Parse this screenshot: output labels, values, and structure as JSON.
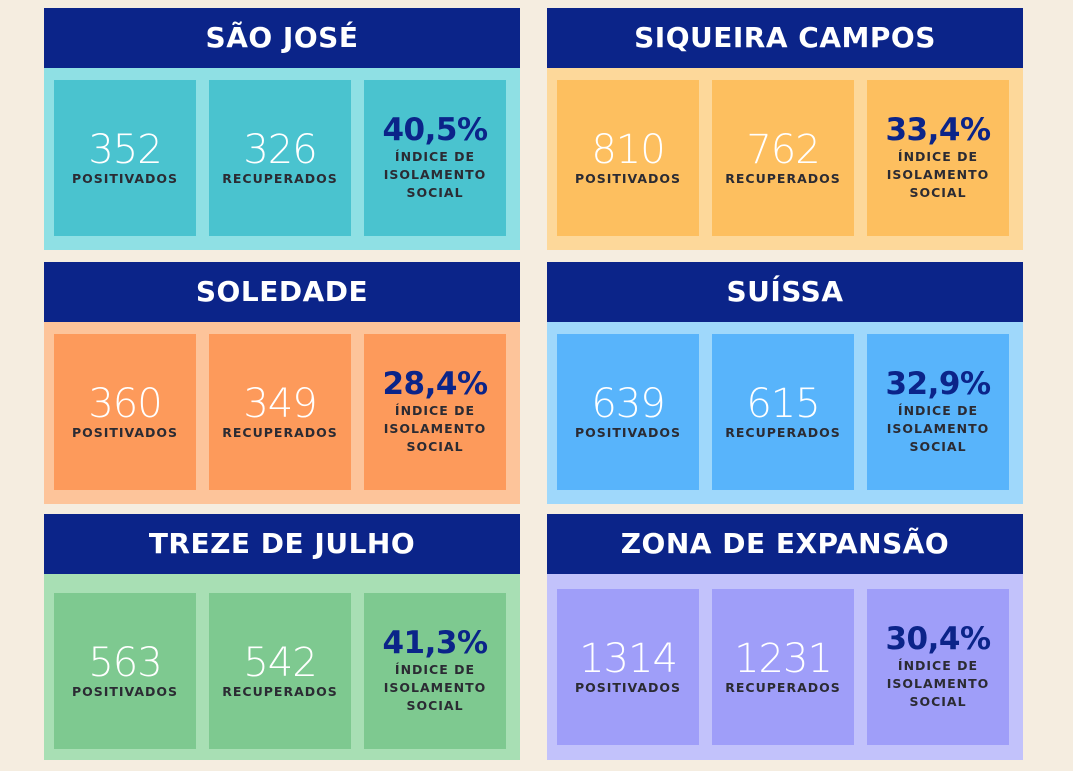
{
  "colors": {
    "background": "#f5ede0",
    "header": "#0b2489",
    "percent_text": "#0b2489",
    "label_text": "#2b2b33"
  },
  "panels": [
    {
      "name": "SÃO JOSÉ",
      "positivos": "352",
      "positivos_label": "POSITIVADOS",
      "recuperados": "326",
      "recuperados_label": "RECUPERADOS",
      "isolamento": "40,5%",
      "isolamento_label_1": "ÍNDICE DE",
      "isolamento_label_2": "ISOLAMENTO",
      "isolamento_label_3": "SOCIAL",
      "panel_color": "#8fe0e4",
      "box_color": "#4ac3cf"
    },
    {
      "name": "SIQUEIRA CAMPOS",
      "positivos": "810",
      "positivos_label": "POSITIVADOS",
      "recuperados": "762",
      "recuperados_label": "RECUPERADOS",
      "isolamento": "33,4%",
      "isolamento_label_1": "ÍNDICE DE",
      "isolamento_label_2": "ISOLAMENTO",
      "isolamento_label_3": "SOCIAL",
      "panel_color": "#fdd89a",
      "box_color": "#fdbf5f"
    },
    {
      "name": "SOLEDADE",
      "positivos": "360",
      "positivos_label": "POSITIVADOS",
      "recuperados": "349",
      "recuperados_label": "RECUPERADOS",
      "isolamento": "28,4%",
      "isolamento_label_1": "ÍNDICE DE",
      "isolamento_label_2": "ISOLAMENTO",
      "isolamento_label_3": "SOCIAL",
      "panel_color": "#fdc49a",
      "box_color": "#fd9a5b"
    },
    {
      "name": "SUÍSSA",
      "positivos": "639",
      "positivos_label": "POSITIVADOS",
      "recuperados": "615",
      "recuperados_label": "RECUPERADOS",
      "isolamento": "32,9%",
      "isolamento_label_1": "ÍNDICE DE",
      "isolamento_label_2": "ISOLAMENTO",
      "isolamento_label_3": "SOCIAL",
      "panel_color": "#9fd8fb",
      "box_color": "#58b4fb"
    },
    {
      "name": "TREZE DE JULHO",
      "positivos": "563",
      "positivos_label": "POSITIVADOS",
      "recuperados": "542",
      "recuperados_label": "RECUPERADOS",
      "isolamento": "41,3%",
      "isolamento_label_1": "ÍNDICE DE",
      "isolamento_label_2": "ISOLAMENTO",
      "isolamento_label_3": "SOCIAL",
      "panel_color": "#a8dfb4",
      "box_color": "#7ec990"
    },
    {
      "name": "ZONA DE EXPANSÃO",
      "positivos": "1314",
      "positivos_label": "POSITIVADOS",
      "recuperados": "1231",
      "recuperados_label": "RECUPERADOS",
      "isolamento": "30,4%",
      "isolamento_label_1": "ÍNDICE DE",
      "isolamento_label_2": "ISOLAMENTO",
      "isolamento_label_3": "SOCIAL",
      "panel_color": "#c2c2fb",
      "box_color": "#9f9ef9"
    }
  ]
}
